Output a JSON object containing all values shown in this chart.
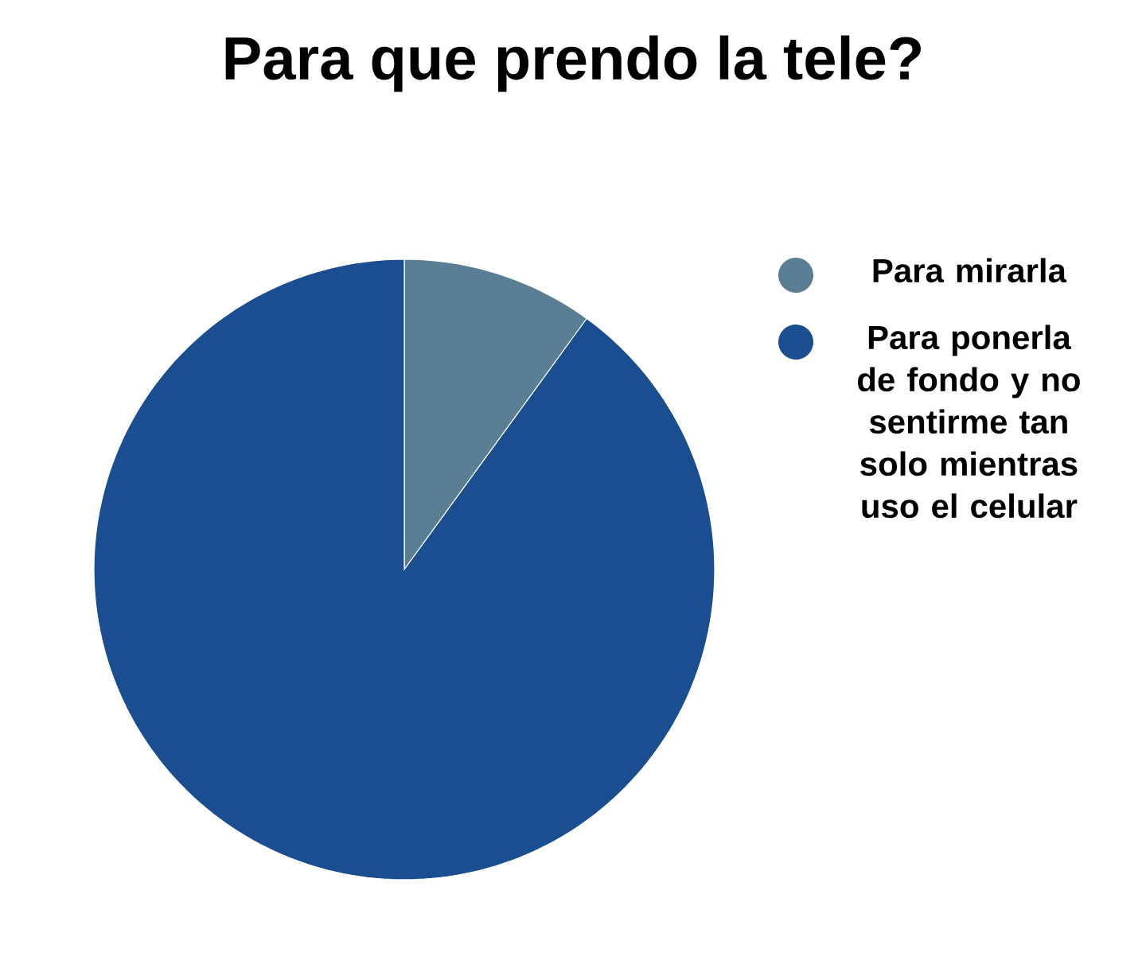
{
  "chart_data": {
    "type": "pie",
    "title": "Para que prendo la tele?",
    "categories": [
      "Para mirarla",
      "Para ponerla de fondo y no sentirme tan solo mientras uso el celular"
    ],
    "values": [
      10,
      90
    ],
    "colors": [
      "#5a7f94",
      "#1a4e90"
    ],
    "legend": "right"
  }
}
